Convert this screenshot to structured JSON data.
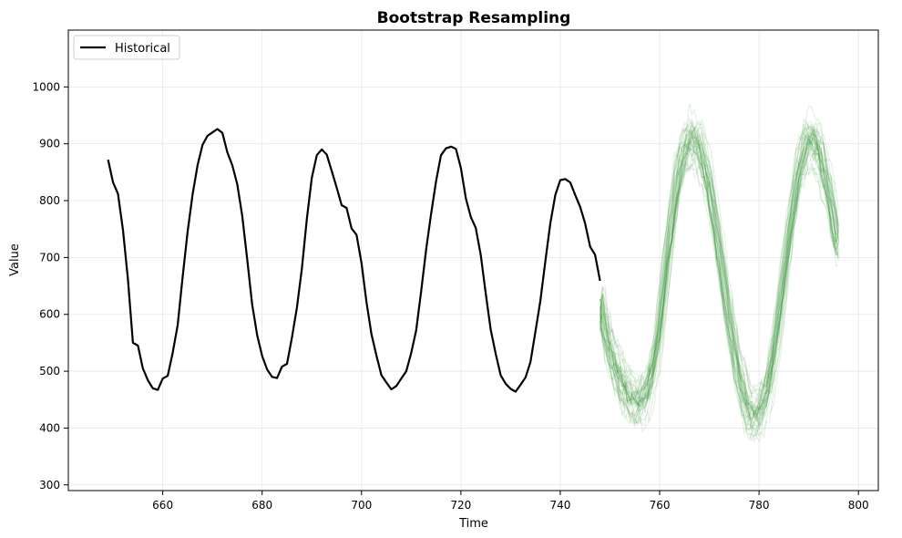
{
  "chart_data": {
    "type": "line",
    "title": "Bootstrap Resampling",
    "xlabel": "Time",
    "ylabel": "Value",
    "xlim": [
      641,
      804
    ],
    "ylim": [
      290,
      1100
    ],
    "xticks": [
      660,
      680,
      700,
      720,
      740,
      760,
      780,
      800
    ],
    "yticks": [
      300,
      400,
      500,
      600,
      700,
      800,
      900,
      1000
    ],
    "grid": true,
    "legend": {
      "placement": "top-left",
      "entries": [
        "Historical"
      ]
    },
    "colors": {
      "historical": "#000000",
      "bootstrap": "#2e8b2e"
    },
    "series": [
      {
        "name": "Historical",
        "x": [
          649,
          650,
          651,
          652,
          653,
          654,
          655,
          656,
          657,
          658,
          659,
          660,
          661,
          662,
          663,
          664,
          665,
          666,
          667,
          668,
          669,
          670,
          671,
          672,
          673,
          674,
          675,
          676,
          677,
          678,
          679,
          680,
          681,
          682,
          683,
          684,
          685,
          686,
          687,
          688,
          689,
          690,
          691,
          692,
          693,
          694,
          695,
          696,
          697,
          698,
          699,
          700,
          701,
          702,
          703,
          704,
          705,
          706,
          707,
          708,
          709,
          710,
          711,
          712,
          713,
          714,
          715,
          716,
          717,
          718,
          719,
          720,
          721,
          722,
          723,
          724,
          725,
          726,
          727,
          728,
          729,
          730,
          731,
          732,
          733,
          734,
          735,
          736,
          737,
          738,
          739,
          740,
          741,
          742,
          743,
          744,
          745,
          746,
          747,
          748
        ],
        "y": [
          872,
          832,
          812,
          748,
          662,
          550,
          545,
          505,
          484,
          470,
          467,
          487,
          492,
          532,
          581,
          665,
          745,
          810,
          862,
          898,
          914,
          920,
          926,
          919,
          885,
          862,
          829,
          773,
          697,
          617,
          563,
          527,
          503,
          490,
          488,
          508,
          513,
          559,
          612,
          680,
          768,
          840,
          880,
          890,
          881,
          852,
          823,
          792,
          787,
          751,
          740,
          690,
          622,
          565,
          528,
          493,
          480,
          468,
          474,
          487,
          500,
          532,
          572,
          640,
          714,
          776,
          834,
          880,
          892,
          895,
          891,
          857,
          804,
          771,
          752,
          704,
          637,
          573,
          531,
          493,
          478,
          469,
          464,
          476,
          489,
          516,
          570,
          624,
          694,
          760,
          810,
          836,
          838,
          832,
          810,
          789,
          760,
          719,
          705,
          659
        ]
      }
    ],
    "bootstrap_samples": {
      "count": 40,
      "x_start": 748,
      "x_end": 796,
      "center_path": [
        [
          748,
          630
        ],
        [
          750,
          540
        ],
        [
          752,
          490
        ],
        [
          754,
          455
        ],
        [
          756,
          445
        ],
        [
          758,
          470
        ],
        [
          760,
          560
        ],
        [
          762,
          720
        ],
        [
          764,
          845
        ],
        [
          766,
          905
        ],
        [
          768,
          895
        ],
        [
          770,
          830
        ],
        [
          772,
          720
        ],
        [
          774,
          600
        ],
        [
          776,
          500
        ],
        [
          778,
          430
        ],
        [
          780,
          425
        ],
        [
          782,
          470
        ],
        [
          784,
          580
        ],
        [
          786,
          720
        ],
        [
          788,
          840
        ],
        [
          790,
          905
        ],
        [
          792,
          890
        ],
        [
          794,
          820
        ],
        [
          796,
          720
        ]
      ]
    }
  }
}
